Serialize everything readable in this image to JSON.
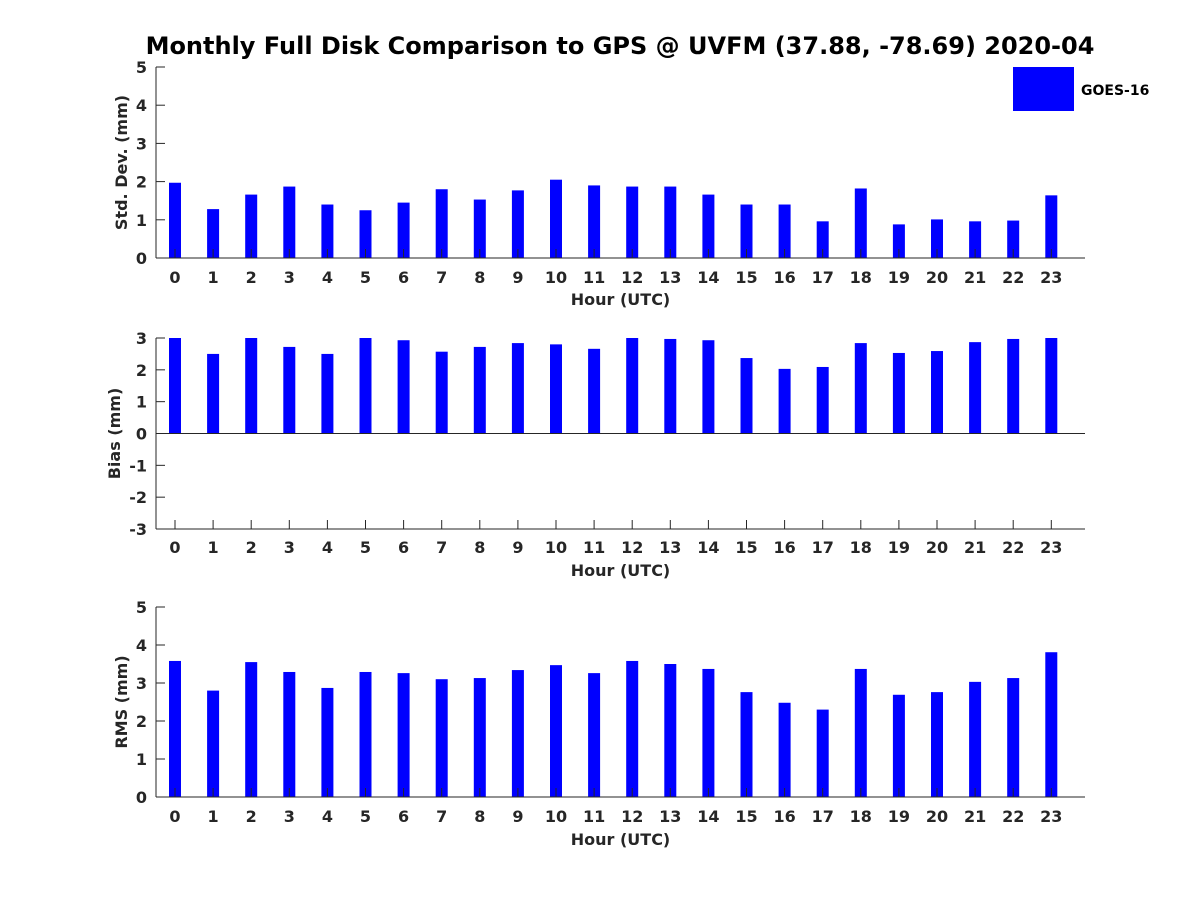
{
  "chart_data": [
    {
      "type": "bar",
      "title": "Monthly Full Disk Comparison to GPS @ UVFM (37.88, -78.69) 2020-04",
      "xlabel": "Hour (UTC)",
      "ylabel": "Std. Dev. (mm)",
      "ylim": [
        0,
        5
      ],
      "yticks": [
        "0",
        "1",
        "2",
        "3",
        "4",
        "5"
      ],
      "categories": [
        "0",
        "1",
        "2",
        "3",
        "4",
        "5",
        "6",
        "7",
        "8",
        "9",
        "10",
        "11",
        "12",
        "13",
        "14",
        "15",
        "16",
        "17",
        "18",
        "19",
        "20",
        "21",
        "22",
        "23"
      ],
      "series": [
        {
          "name": "GOES-16",
          "values": [
            1.97,
            1.28,
            1.66,
            1.87,
            1.4,
            1.25,
            1.45,
            1.8,
            1.53,
            1.77,
            2.05,
            1.9,
            1.87,
            1.87,
            1.66,
            1.4,
            1.4,
            0.96,
            1.82,
            0.88,
            1.01,
            0.96,
            0.98,
            1.64
          ]
        }
      ],
      "legend": {
        "position": "top-right",
        "entries": [
          "GOES-16"
        ]
      }
    },
    {
      "type": "bar",
      "xlabel": "Hour (UTC)",
      "ylabel": "Bias (mm)",
      "ylim": [
        -3,
        3
      ],
      "yticks": [
        "-3",
        "-2",
        "-1",
        "0",
        "1",
        "2",
        "3"
      ],
      "categories": [
        "0",
        "1",
        "2",
        "3",
        "4",
        "5",
        "6",
        "7",
        "8",
        "9",
        "10",
        "11",
        "12",
        "13",
        "14",
        "15",
        "16",
        "17",
        "18",
        "19",
        "20",
        "21",
        "22",
        "23"
      ],
      "series": [
        {
          "name": "GOES-16",
          "values": [
            3.0,
            2.5,
            3.0,
            2.72,
            2.5,
            3.0,
            2.93,
            2.57,
            2.72,
            2.84,
            2.8,
            2.66,
            3.0,
            2.97,
            2.93,
            2.37,
            2.03,
            2.09,
            2.84,
            2.53,
            2.59,
            2.87,
            2.97,
            3.0
          ]
        }
      ]
    },
    {
      "type": "bar",
      "xlabel": "Hour (UTC)",
      "ylabel": "RMS (mm)",
      "ylim": [
        0,
        5
      ],
      "yticks": [
        "0",
        "1",
        "2",
        "3",
        "4",
        "5"
      ],
      "categories": [
        "0",
        "1",
        "2",
        "3",
        "4",
        "5",
        "6",
        "7",
        "8",
        "9",
        "10",
        "11",
        "12",
        "13",
        "14",
        "15",
        "16",
        "17",
        "18",
        "19",
        "20",
        "21",
        "22",
        "23"
      ],
      "series": [
        {
          "name": "GOES-16",
          "values": [
            3.58,
            2.8,
            3.55,
            3.29,
            2.87,
            3.29,
            3.26,
            3.1,
            3.13,
            3.34,
            3.47,
            3.26,
            3.58,
            3.5,
            3.37,
            2.76,
            2.48,
            2.3,
            3.37,
            2.69,
            2.76,
            3.03,
            3.13,
            3.81
          ]
        }
      ]
    }
  ],
  "colors": {
    "bar": "#0000ff",
    "axis": "#262626"
  }
}
